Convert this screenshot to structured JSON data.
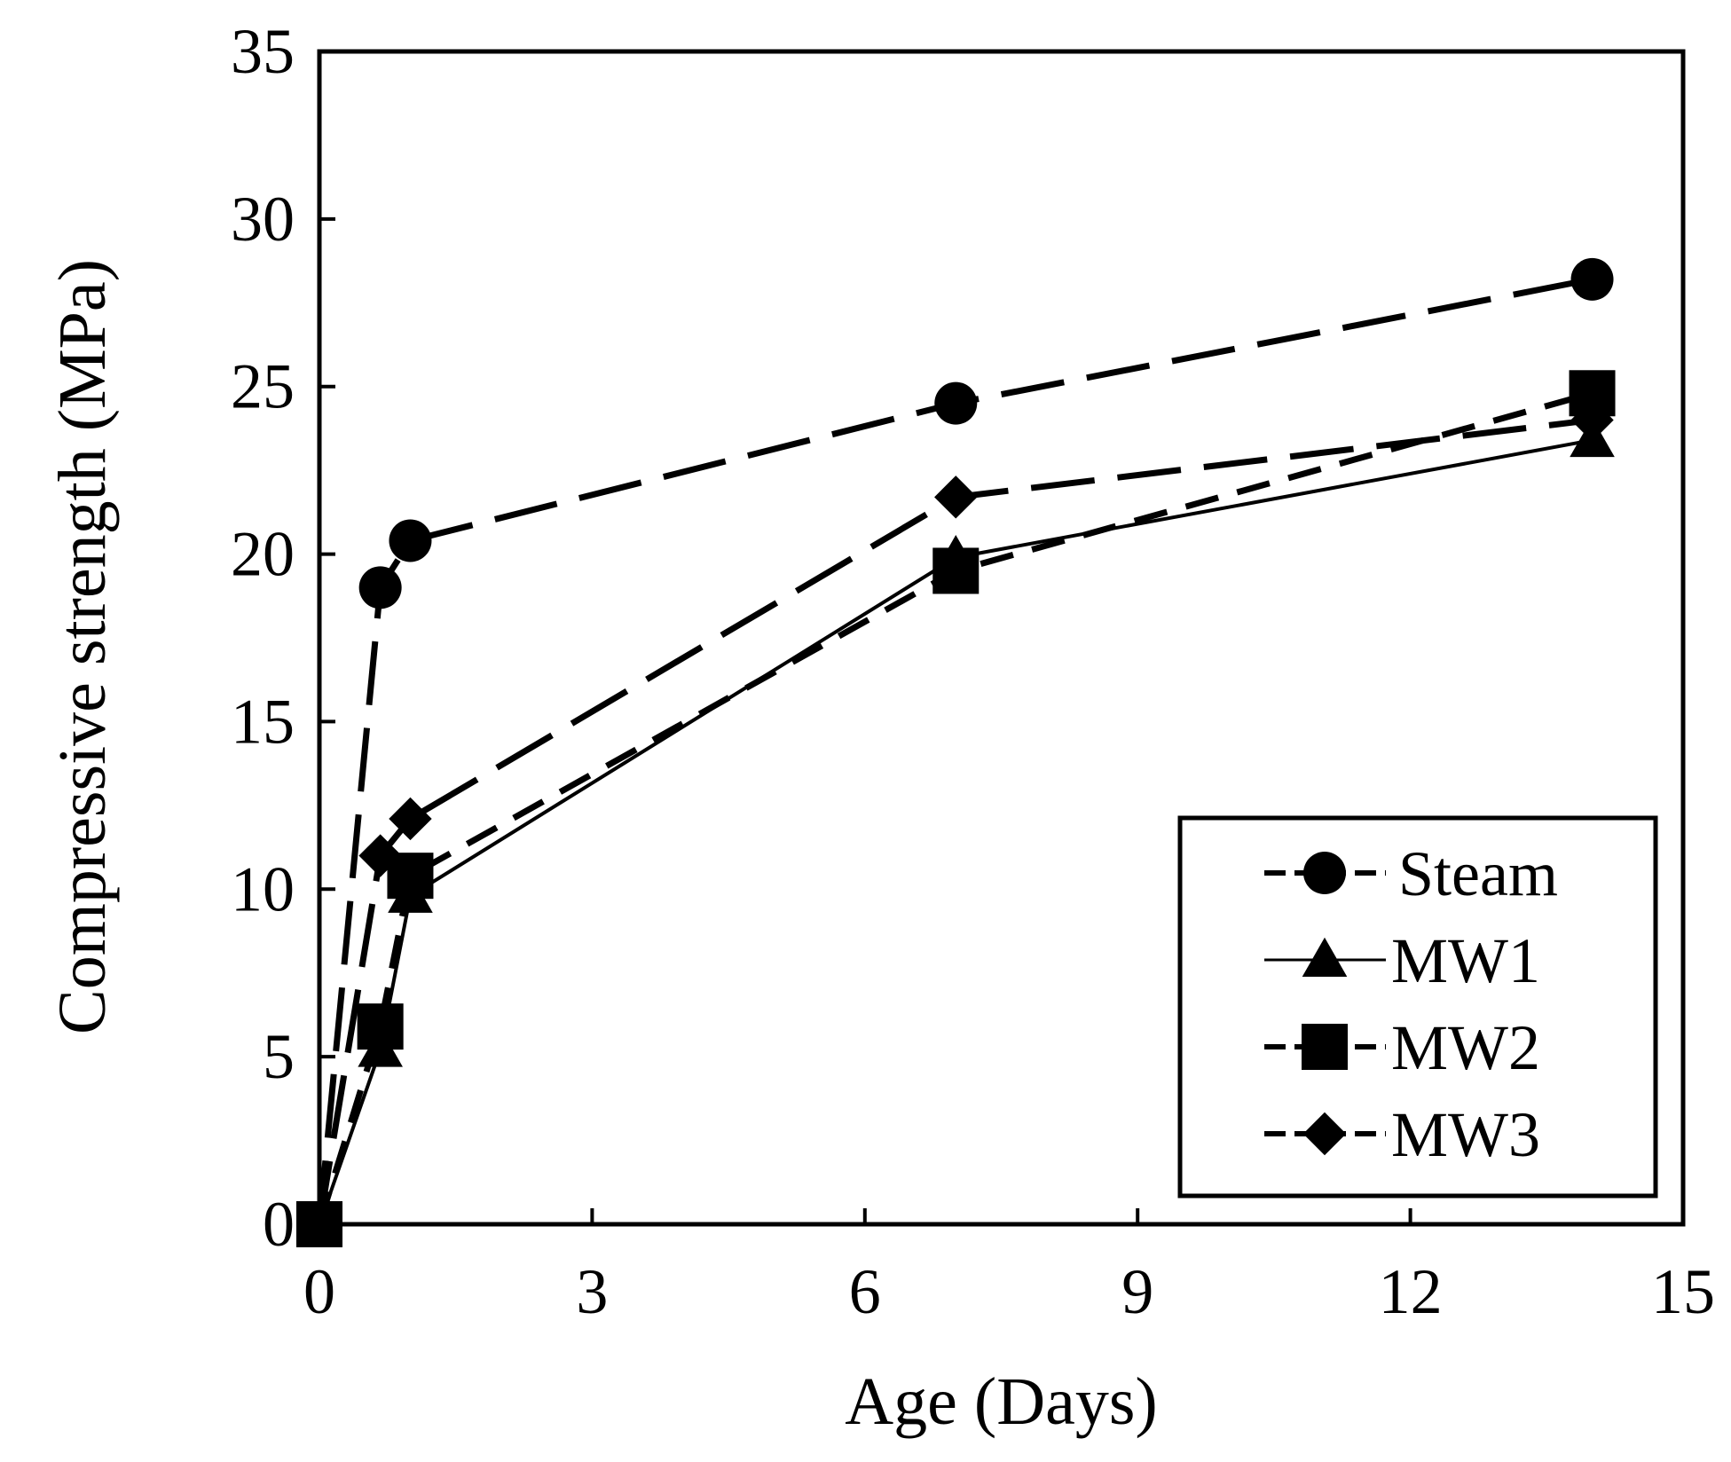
{
  "chart_data": {
    "type": "line",
    "title": "",
    "xlabel": "Age (Days)",
    "ylabel": "Compressive strength (MPa)",
    "xlim": [
      0,
      15
    ],
    "ylim": [
      0,
      35
    ],
    "xticks": [
      0,
      3,
      6,
      9,
      12,
      15
    ],
    "yticks": [
      0,
      5,
      10,
      15,
      20,
      25,
      30,
      35
    ],
    "xtick_labels": [
      "0",
      "3",
      "6",
      "9",
      "12",
      "15"
    ],
    "ytick_labels": [
      "0",
      "5",
      "10",
      "15",
      "20",
      "25",
      "30",
      "35"
    ],
    "grid": false,
    "legend_position": "lower-right",
    "series": [
      {
        "name": "Steam",
        "marker": "circle",
        "line": "long-dash",
        "x": [
          0,
          0.67,
          1,
          7,
          14
        ],
        "y": [
          0,
          19.0,
          20.4,
          24.5,
          28.2
        ]
      },
      {
        "name": "MW1",
        "marker": "triangle",
        "line": "solid",
        "x": [
          0,
          0.67,
          1,
          7,
          14
        ],
        "y": [
          0,
          5.2,
          9.8,
          19.9,
          23.4
        ]
      },
      {
        "name": "MW2",
        "marker": "square",
        "line": "short-dash",
        "x": [
          0,
          0.67,
          1,
          7,
          14
        ],
        "y": [
          0,
          5.9,
          10.4,
          19.5,
          24.8
        ]
      },
      {
        "name": "MW3",
        "marker": "diamond",
        "line": "long-dash",
        "x": [
          0,
          0.67,
          1,
          7,
          14
        ],
        "y": [
          0,
          11.0,
          12.1,
          21.7,
          24.0
        ]
      }
    ]
  }
}
